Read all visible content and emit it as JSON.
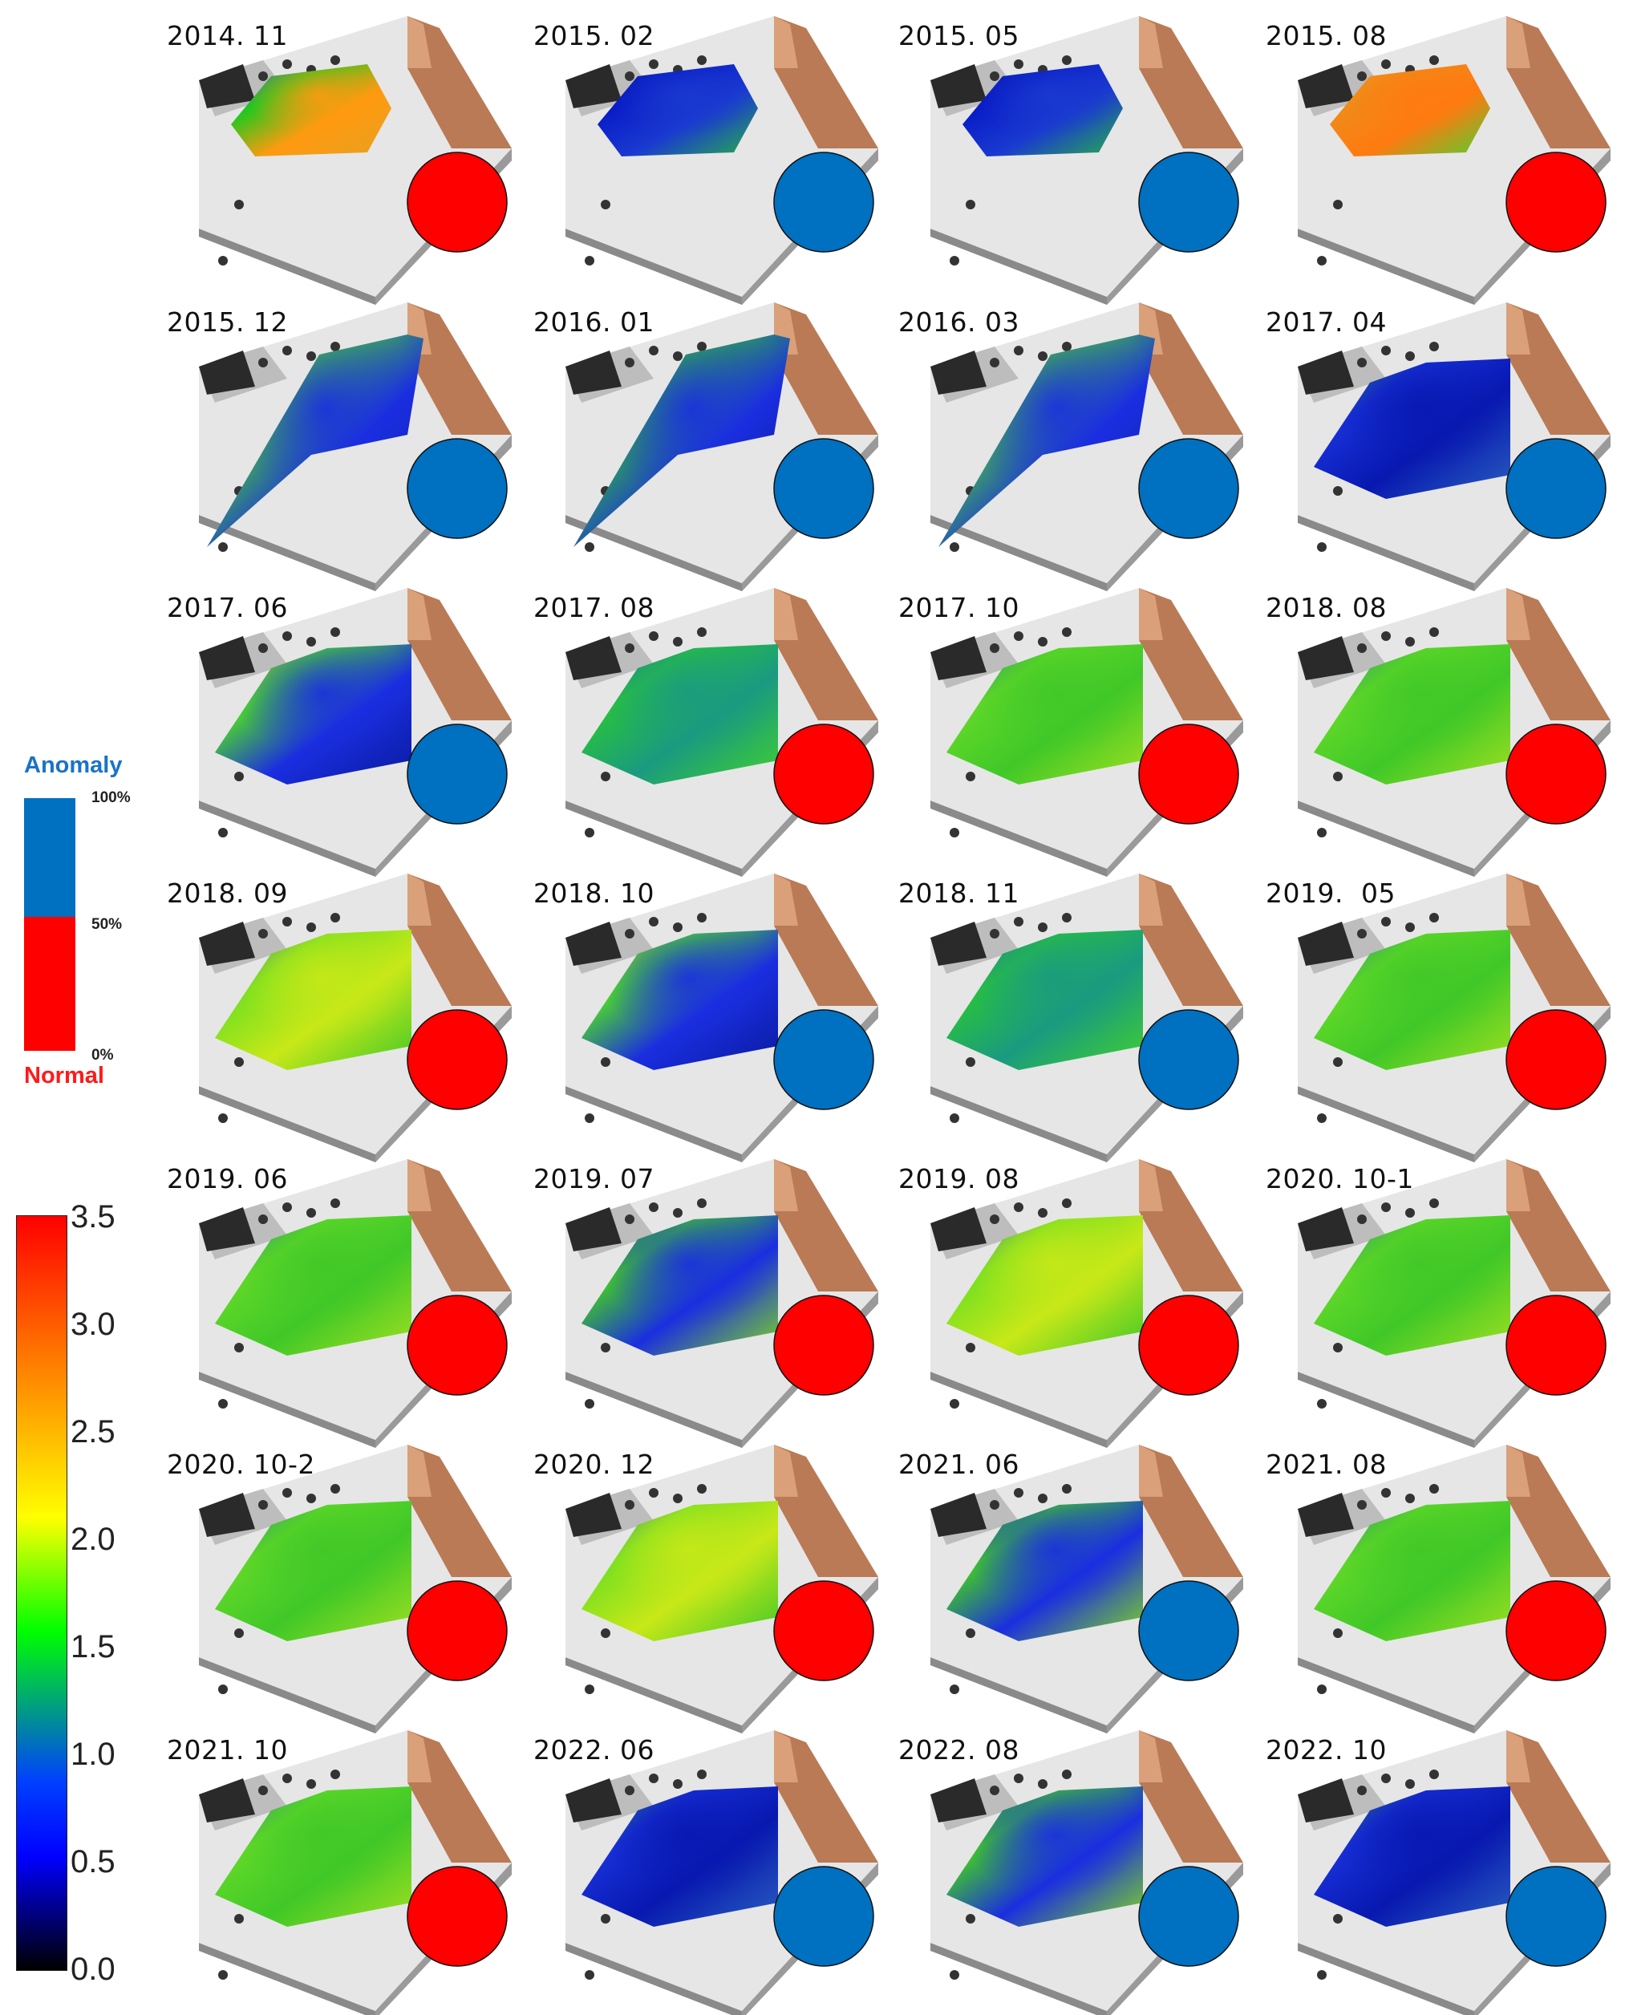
{
  "category_legend": {
    "top_label": "Anomaly",
    "bottom_label": "Normal",
    "top_color": "#0070c0",
    "bottom_color": "#ff0000",
    "pct_top": "100%",
    "pct_mid": "50%",
    "pct_bottom": "0%"
  },
  "colorbar": {
    "ticks": [
      "3.5",
      "3.0",
      "2.5",
      "2.0",
      "1.5",
      "1.0",
      "0.5",
      "0.0"
    ],
    "min": 0.0,
    "max": 3.5,
    "stops": [
      "#000000",
      "#0000ff",
      "#00ff00",
      "#ffff00",
      "#ff0000"
    ]
  },
  "status_colors": {
    "anomaly": "#0070c0",
    "normal": "#ff0000"
  },
  "panels": [
    {
      "label": "2014. 11",
      "status": "normal",
      "shape": "hex",
      "field": "orange-peak"
    },
    {
      "label": "2015. 02",
      "status": "anomaly",
      "shape": "hex",
      "field": "deep-blue"
    },
    {
      "label": "2015. 05",
      "status": "anomaly",
      "shape": "hex",
      "field": "deep-blue"
    },
    {
      "label": "2015. 08",
      "status": "normal",
      "shape": "hex",
      "field": "orange"
    },
    {
      "label": "2015. 12",
      "status": "anomaly",
      "shape": "tri",
      "field": "blue-green"
    },
    {
      "label": "2016. 01",
      "status": "anomaly",
      "shape": "tri",
      "field": "dark-blue"
    },
    {
      "label": "2016. 03",
      "status": "anomaly",
      "shape": "tri",
      "field": "blue-green"
    },
    {
      "label": "2017. 04",
      "status": "anomaly",
      "shape": "wide",
      "field": "blue"
    },
    {
      "label": "2017. 06",
      "status": "anomaly",
      "shape": "wide",
      "field": "blue-green"
    },
    {
      "label": "2017. 08",
      "status": "normal",
      "shape": "wide",
      "field": "green-teal"
    },
    {
      "label": "2017. 10",
      "status": "normal",
      "shape": "wide",
      "field": "green"
    },
    {
      "label": "2018. 08",
      "status": "normal",
      "shape": "wide",
      "field": "green"
    },
    {
      "label": "2018. 09",
      "status": "normal",
      "shape": "wide",
      "field": "green-yellow"
    },
    {
      "label": "2018. 10",
      "status": "anomaly",
      "shape": "wide",
      "field": "blue-green"
    },
    {
      "label": "2018. 11",
      "status": "anomaly",
      "shape": "wide",
      "field": "green-teal"
    },
    {
      "label": "2019.  05",
      "status": "normal",
      "shape": "wide",
      "field": "green"
    },
    {
      "label": "2019. 06",
      "status": "normal",
      "shape": "wide",
      "field": "green"
    },
    {
      "label": "2019. 07",
      "status": "normal",
      "shape": "wide",
      "field": "green-blue"
    },
    {
      "label": "2019. 08",
      "status": "normal",
      "shape": "wide",
      "field": "green-yellow"
    },
    {
      "label": "2020. 10-1",
      "status": "normal",
      "shape": "wide",
      "field": "green"
    },
    {
      "label": "2020. 10-2",
      "status": "normal",
      "shape": "wide",
      "field": "green"
    },
    {
      "label": "2020. 12",
      "status": "normal",
      "shape": "wide",
      "field": "green-yellow"
    },
    {
      "label": "2021. 06",
      "status": "anomaly",
      "shape": "wide",
      "field": "green-blue"
    },
    {
      "label": "2021. 08",
      "status": "normal",
      "shape": "wide",
      "field": "green"
    },
    {
      "label": "2021. 10",
      "status": "normal",
      "shape": "wide",
      "field": "green"
    },
    {
      "label": "2022. 06",
      "status": "anomaly",
      "shape": "wide",
      "field": "blue"
    },
    {
      "label": "2022. 08",
      "status": "anomaly",
      "shape": "wide",
      "field": "green-blue"
    },
    {
      "label": "2022. 10",
      "status": "anomaly",
      "shape": "wide",
      "field": "blue"
    }
  ]
}
